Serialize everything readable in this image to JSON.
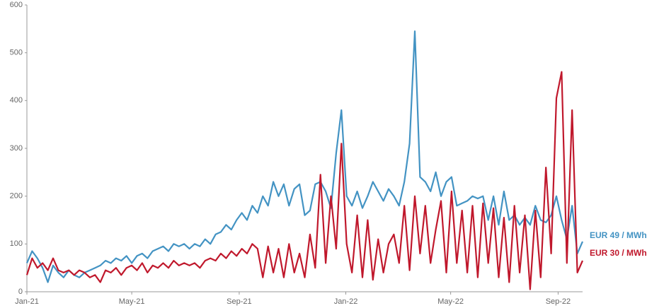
{
  "chart_data": {
    "type": "line",
    "x": [
      0,
      6,
      12,
      18,
      24,
      30,
      36,
      42,
      48,
      54,
      60,
      66,
      72,
      78,
      84,
      90,
      96,
      102,
      108,
      114,
      120,
      126,
      132,
      138,
      144,
      150,
      156,
      162,
      168,
      174,
      180,
      186,
      192,
      198,
      204,
      210,
      216,
      222,
      228,
      234,
      240,
      246,
      252,
      258,
      264,
      270,
      276,
      282,
      288,
      294,
      300,
      306,
      312,
      318,
      324,
      330,
      336,
      342,
      348,
      354,
      360,
      366,
      372,
      378,
      384,
      390,
      396,
      402,
      408,
      414,
      420,
      426,
      432,
      438,
      444,
      450,
      456,
      462,
      468,
      474,
      480,
      486,
      492,
      498,
      504,
      510,
      516,
      522,
      528,
      534,
      540,
      546,
      552,
      558,
      564,
      570,
      576,
      582,
      588,
      594,
      600,
      606,
      612,
      618,
      624,
      630,
      636
    ],
    "series": [
      {
        "name": "EUR 49 / MWh",
        "color": "#4393c3",
        "values": [
          60,
          85,
          70,
          50,
          20,
          55,
          40,
          30,
          45,
          35,
          30,
          40,
          45,
          50,
          55,
          65,
          60,
          70,
          65,
          75,
          60,
          75,
          80,
          70,
          85,
          90,
          95,
          85,
          100,
          95,
          100,
          90,
          100,
          95,
          110,
          100,
          120,
          125,
          140,
          130,
          150,
          165,
          150,
          180,
          165,
          200,
          180,
          230,
          200,
          225,
          180,
          215,
          225,
          160,
          170,
          225,
          230,
          210,
          175,
          290,
          380,
          200,
          180,
          210,
          175,
          200,
          230,
          210,
          190,
          215,
          200,
          180,
          230,
          310,
          545,
          240,
          230,
          210,
          250,
          200,
          230,
          240,
          180,
          185,
          190,
          200,
          195,
          200,
          150,
          200,
          140,
          210,
          150,
          160,
          140,
          155,
          140,
          180,
          150,
          145,
          160,
          200,
          150,
          110,
          180,
          80,
          105
        ]
      },
      {
        "name": "EUR 30 / MWh",
        "color": "#c0182c",
        "values": [
          35,
          70,
          50,
          60,
          45,
          70,
          45,
          40,
          45,
          35,
          45,
          40,
          30,
          35,
          20,
          45,
          40,
          50,
          35,
          50,
          55,
          45,
          60,
          40,
          55,
          50,
          60,
          50,
          65,
          55,
          60,
          55,
          60,
          50,
          65,
          70,
          65,
          80,
          70,
          85,
          75,
          90,
          80,
          100,
          90,
          30,
          95,
          40,
          90,
          30,
          100,
          40,
          80,
          30,
          120,
          50,
          245,
          60,
          200,
          90,
          310,
          100,
          40,
          160,
          30,
          150,
          25,
          110,
          40,
          100,
          120,
          60,
          180,
          45,
          200,
          80,
          180,
          60,
          130,
          190,
          40,
          210,
          60,
          170,
          40,
          180,
          30,
          185,
          60,
          175,
          30,
          155,
          20,
          180,
          40,
          160,
          5,
          170,
          30,
          260,
          80,
          405,
          460,
          60,
          380,
          40,
          65
        ]
      }
    ],
    "xlim": [
      0,
      636
    ],
    "xticks": [
      {
        "value": 0,
        "label": "Jan-21"
      },
      {
        "value": 120,
        "label": "May-21"
      },
      {
        "value": 243,
        "label": "Sep-21"
      },
      {
        "value": 365,
        "label": "Jan-22"
      },
      {
        "value": 485,
        "label": "May-22"
      },
      {
        "value": 608,
        "label": "Sep-22"
      }
    ],
    "ylim": [
      0,
      600
    ],
    "yticks": [
      0,
      100,
      200,
      300,
      400,
      500,
      600
    ]
  }
}
